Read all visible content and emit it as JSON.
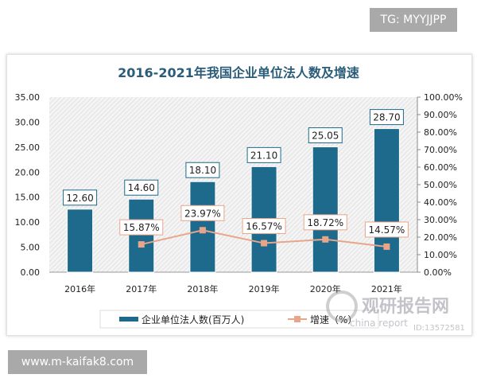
{
  "watermark_top": "TG: MYYJJPP",
  "watermark_bottom": "www.m-kaifak8.com",
  "logo_watermark": {
    "name": "观研报告网",
    "sub": "china report",
    "id": "ID:13572581"
  },
  "colors": {
    "bar": "#1d6a8c",
    "line": "#e8a58a",
    "title": "#2b5d7a"
  },
  "chart_data": {
    "type": "bar+line",
    "title": "2016-2021年我国企业单位法人数及增速",
    "categories": [
      "2016年",
      "2017年",
      "2018年",
      "2019年",
      "2020年",
      "2021年"
    ],
    "series": [
      {
        "name": "企业单位法人数(百万人)",
        "type": "bar",
        "axis": "left",
        "values": [
          12.6,
          14.6,
          18.1,
          21.1,
          25.05,
          28.7
        ],
        "labels": [
          "12.60",
          "14.60",
          "18.10",
          "21.10",
          "25.05",
          "28.70"
        ]
      },
      {
        "name": "增速（%）",
        "type": "line",
        "axis": "right",
        "values": [
          null,
          15.87,
          23.97,
          16.57,
          18.72,
          14.57
        ],
        "labels": [
          "",
          "15.87%",
          "23.97%",
          "16.57%",
          "18.72%",
          "14.57%"
        ]
      }
    ],
    "left_axis": {
      "ylim": [
        0,
        35
      ],
      "ticks": [
        "0.00",
        "5.00",
        "10.00",
        "15.00",
        "20.00",
        "25.00",
        "30.00",
        "35.00"
      ]
    },
    "right_axis": {
      "ylim": [
        0,
        100
      ],
      "ticks": [
        "0.00%",
        "10.00%",
        "20.00%",
        "30.00%",
        "40.00%",
        "50.00%",
        "60.00%",
        "70.00%",
        "80.00%",
        "90.00%",
        "100.00%"
      ]
    },
    "legend": "bottom",
    "grid": false
  }
}
